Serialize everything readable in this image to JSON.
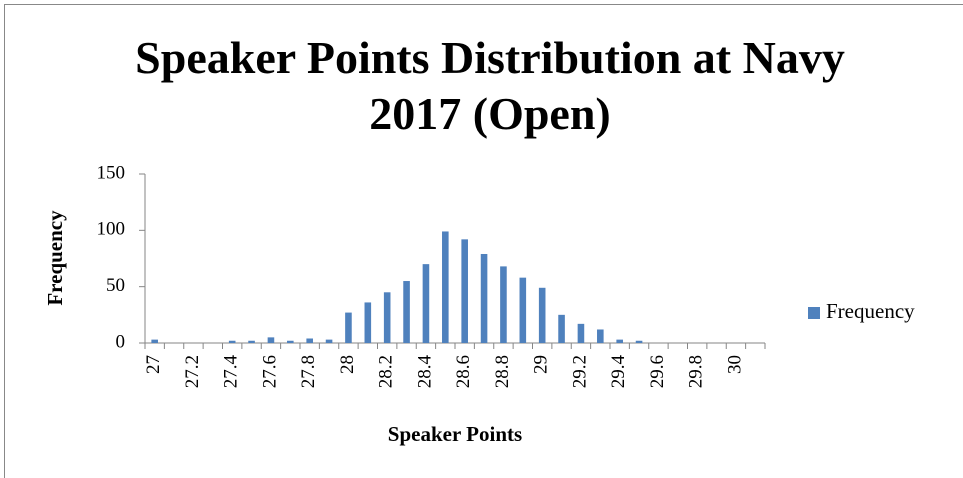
{
  "chart_data": {
    "type": "bar",
    "title": "Speaker Points Distribution at Navy 2017 (Open)",
    "x_label": "Speaker Points",
    "y_label": "Frequency",
    "categories": [
      "27",
      null,
      "27.2",
      null,
      "27.4",
      null,
      "27.6",
      null,
      "27.8",
      null,
      "28",
      null,
      "28.2",
      null,
      "28.4",
      null,
      "28.6",
      null,
      "28.8",
      null,
      "29",
      null,
      "29.2",
      null,
      "29.4",
      null,
      "29.6",
      null,
      "29.8",
      null,
      "30",
      null
    ],
    "series": [
      {
        "name": "Frequency",
        "color": "#4f81bd",
        "values": [
          3,
          0,
          0,
          0,
          2,
          2,
          5,
          2,
          4,
          3,
          27,
          36,
          45,
          55,
          70,
          99,
          92,
          79,
          68,
          58,
          49,
          25,
          17,
          12,
          3,
          2,
          0,
          0,
          0,
          0,
          0,
          0
        ]
      }
    ],
    "ylim": [
      0,
      150
    ],
    "yticks": [
      0,
      50,
      100,
      150
    ],
    "grid": false,
    "legend": "right"
  }
}
